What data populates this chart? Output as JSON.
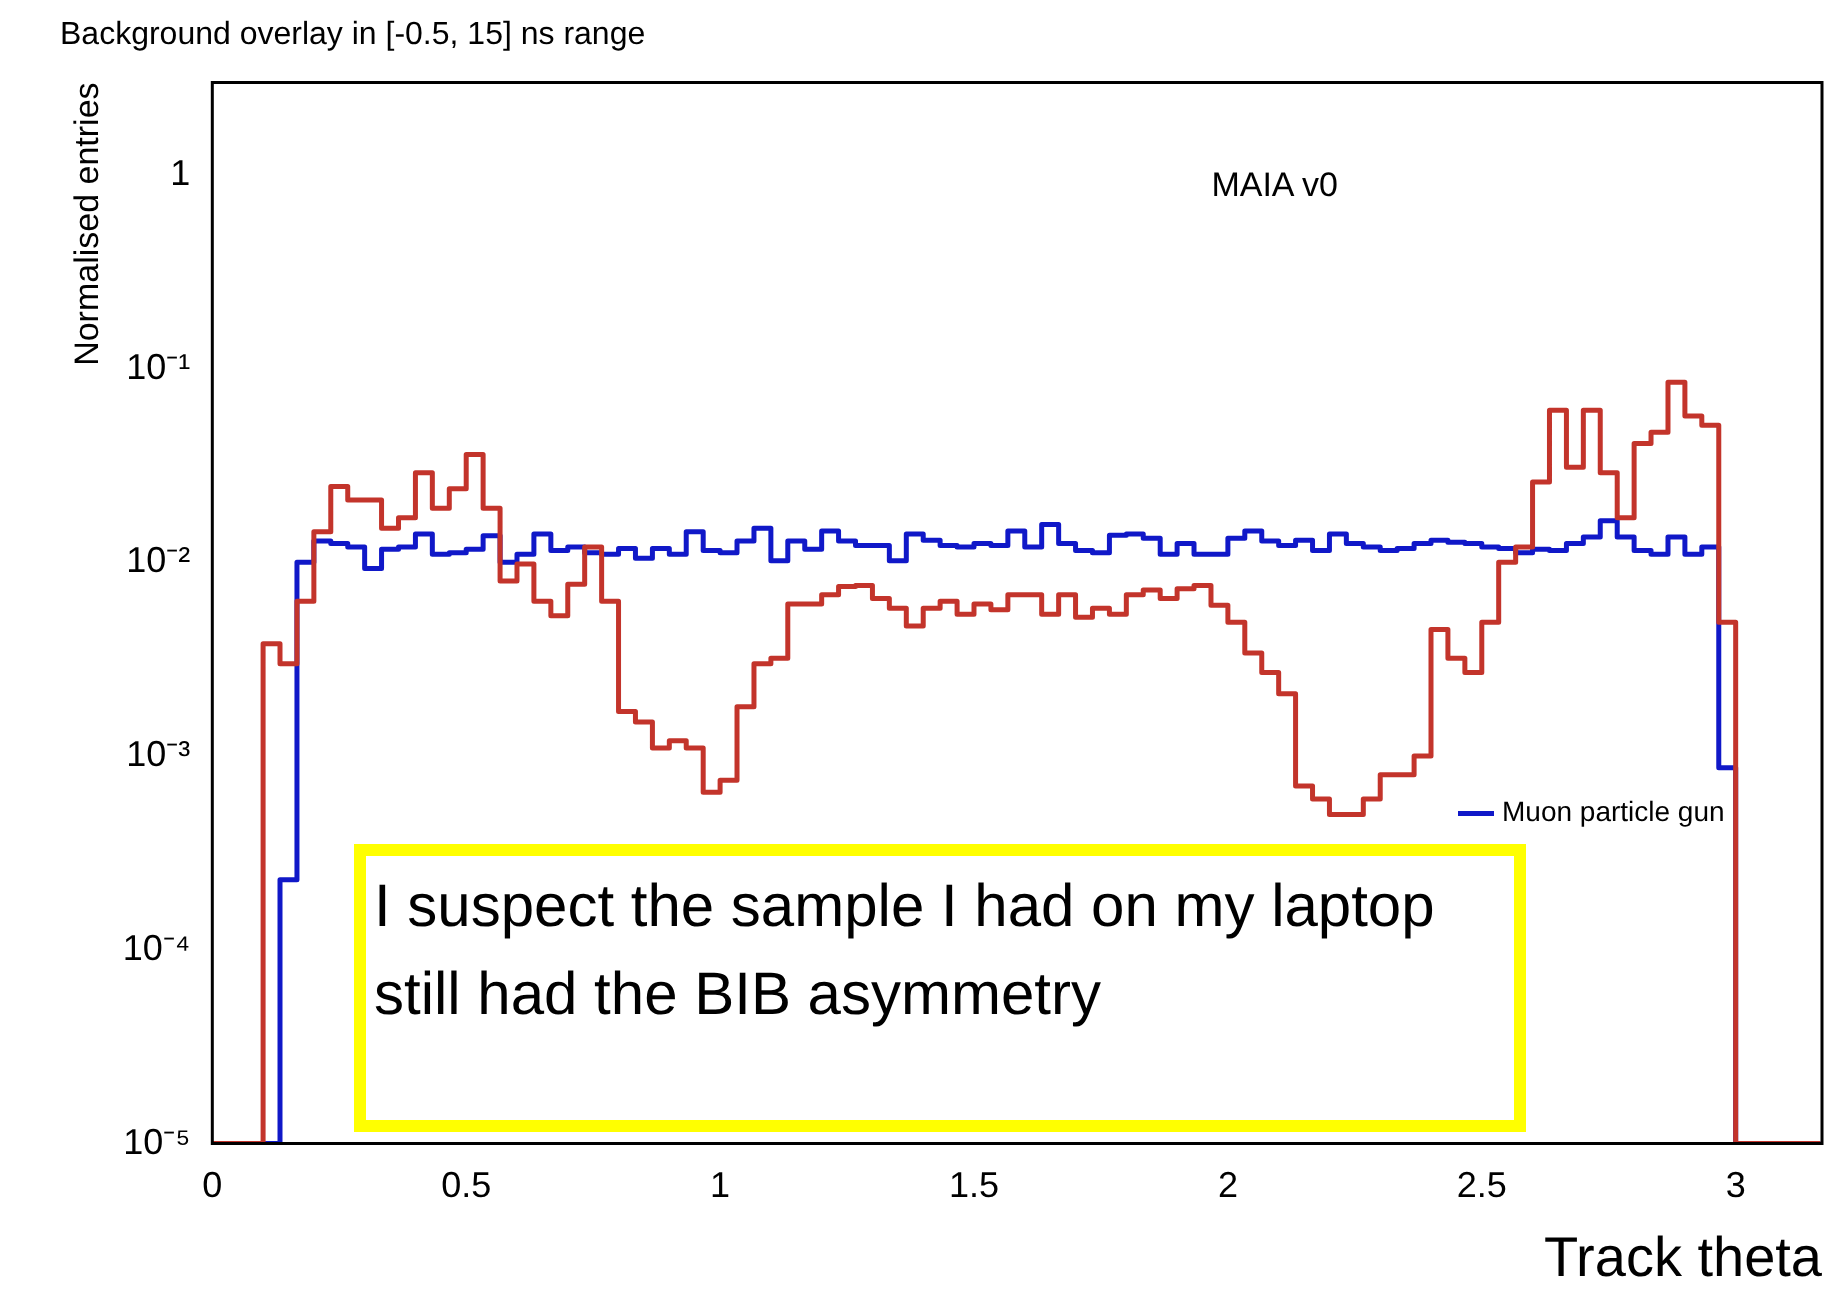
{
  "chart_data": {
    "type": "histogram",
    "title": "Background overlay in [-0.5, 15] ns range",
    "xlabel": "Track theta",
    "ylabel": "Normalised entries",
    "annotations": [
      "MAIA v0",
      "I suspect the sample I had on my laptop still had the BIB asymmetry"
    ],
    "bins": [
      0,
      0.0333,
      0.0667,
      0.1,
      0.1333,
      0.1667,
      0.2,
      0.2333,
      0.2667,
      0.3,
      0.3333,
      0.3667,
      0.4,
      0.4333,
      0.4667,
      0.5,
      0.5333,
      0.5667,
      0.6,
      0.6333,
      0.6667,
      0.7,
      0.7333,
      0.7667,
      0.8,
      0.8333,
      0.8667,
      0.9,
      0.9333,
      0.9667,
      1,
      1.0333,
      1.0667,
      1.1,
      1.1333,
      1.1667,
      1.2,
      1.2333,
      1.2667,
      1.3,
      1.3333,
      1.3667,
      1.4,
      1.4333,
      1.4667,
      1.5,
      1.5333,
      1.5667,
      1.6,
      1.6333,
      1.6667,
      1.7,
      1.7333,
      1.7667,
      1.8,
      1.8333,
      1.8667,
      1.9,
      1.9333,
      1.9667,
      2,
      2.0333,
      2.0667,
      2.1,
      2.1333,
      2.1667,
      2.2,
      2.2333,
      2.2667,
      2.3,
      2.3333,
      2.3667,
      2.4,
      2.4333,
      2.4667,
      2.5,
      2.5333,
      2.5667,
      2.6,
      2.6333,
      2.6667,
      2.7,
      2.7333,
      2.7667,
      2.8,
      2.8333,
      2.8667,
      2.9,
      2.9333,
      2.9667,
      3,
      3.0333,
      3.0667,
      3.1,
      3.1333,
      3.1667
    ],
    "series": [
      {
        "color": "#c3342b",
        "values": [
          null,
          null,
          null,
          0.0038,
          0.003,
          0.0063,
          0.0144,
          0.0246,
          0.021,
          0.021,
          0.015,
          0.017,
          0.029,
          0.019,
          0.024,
          0.036,
          0.019,
          0.008,
          0.0098,
          0.0063,
          0.0053,
          0.0077,
          0.012,
          0.0063,
          0.0017,
          0.0015,
          0.0011,
          0.0012,
          0.0011,
          0.00065,
          0.00075,
          0.0018,
          0.003,
          0.0032,
          0.0061,
          0.0061,
          0.0068,
          0.0075,
          0.0076,
          0.0065,
          0.0058,
          0.0047,
          0.0058,
          0.0063,
          0.0054,
          0.0061,
          0.0057,
          0.0068,
          0.0068,
          0.0054,
          0.0068,
          0.0052,
          0.0058,
          0.0054,
          0.0068,
          0.0072,
          0.0065,
          0.0073,
          0.0076,
          0.006,
          0.0049,
          0.0034,
          0.0027,
          0.0021,
          0.0007,
          0.0006,
          0.0005,
          0.0005,
          0.0006,
          0.0008,
          0.0008,
          0.001,
          0.0045,
          0.0032,
          0.0027,
          0.0049,
          0.01,
          0.012,
          0.026,
          0.061,
          0.031,
          0.061,
          0.029,
          0.017,
          0.041,
          0.047,
          0.085,
          0.057,
          0.051,
          0.0049,
          null,
          null,
          null,
          null,
          null
        ]
      },
      {
        "name": "Muon particle gun",
        "color": "#1018c8",
        "values": [
          null,
          null,
          null,
          null,
          0.00023,
          0.01,
          0.0129,
          0.0125,
          0.012,
          0.0093,
          0.0117,
          0.012,
          0.014,
          0.011,
          0.0112,
          0.0117,
          0.0137,
          0.01,
          0.011,
          0.014,
          0.0115,
          0.012,
          0.0112,
          0.011,
          0.0118,
          0.0105,
          0.0118,
          0.011,
          0.0144,
          0.0115,
          0.0112,
          0.0129,
          0.015,
          0.0102,
          0.0129,
          0.0117,
          0.0145,
          0.0129,
          0.0122,
          0.0122,
          0.0102,
          0.014,
          0.013,
          0.0122,
          0.012,
          0.0125,
          0.0122,
          0.0145,
          0.012,
          0.0157,
          0.0125,
          0.0115,
          0.0112,
          0.0138,
          0.014,
          0.0133,
          0.011,
          0.0125,
          0.011,
          0.011,
          0.0133,
          0.0145,
          0.0129,
          0.0122,
          0.013,
          0.0115,
          0.014,
          0.0125,
          0.012,
          0.0115,
          0.0118,
          0.0125,
          0.013,
          0.0127,
          0.0125,
          0.012,
          0.0118,
          0.0112,
          0.0117,
          0.0115,
          0.0125,
          0.0135,
          0.0164,
          0.0135,
          0.0115,
          0.011,
          0.0135,
          0.011,
          0.012,
          0.00087,
          null,
          null,
          null,
          null,
          null
        ]
      }
    ],
    "xlim": [
      0,
      3.17
    ],
    "xticks": [
      0,
      0.5,
      1,
      1.5,
      2,
      2.5,
      3
    ],
    "ylim": [
      1e-05,
      3
    ],
    "log": true,
    "yticks": [
      {
        "value": 1e-05,
        "label": "10⁻⁵"
      },
      {
        "value": 0.0001,
        "label": "10⁻⁴"
      },
      {
        "value": 0.001,
        "label": "10⁻³"
      },
      {
        "value": 0.01,
        "label": "10⁻²"
      },
      {
        "value": 0.1,
        "label": "10⁻¹"
      },
      1
    ],
    "grid": false,
    "legend": "bottom right"
  }
}
